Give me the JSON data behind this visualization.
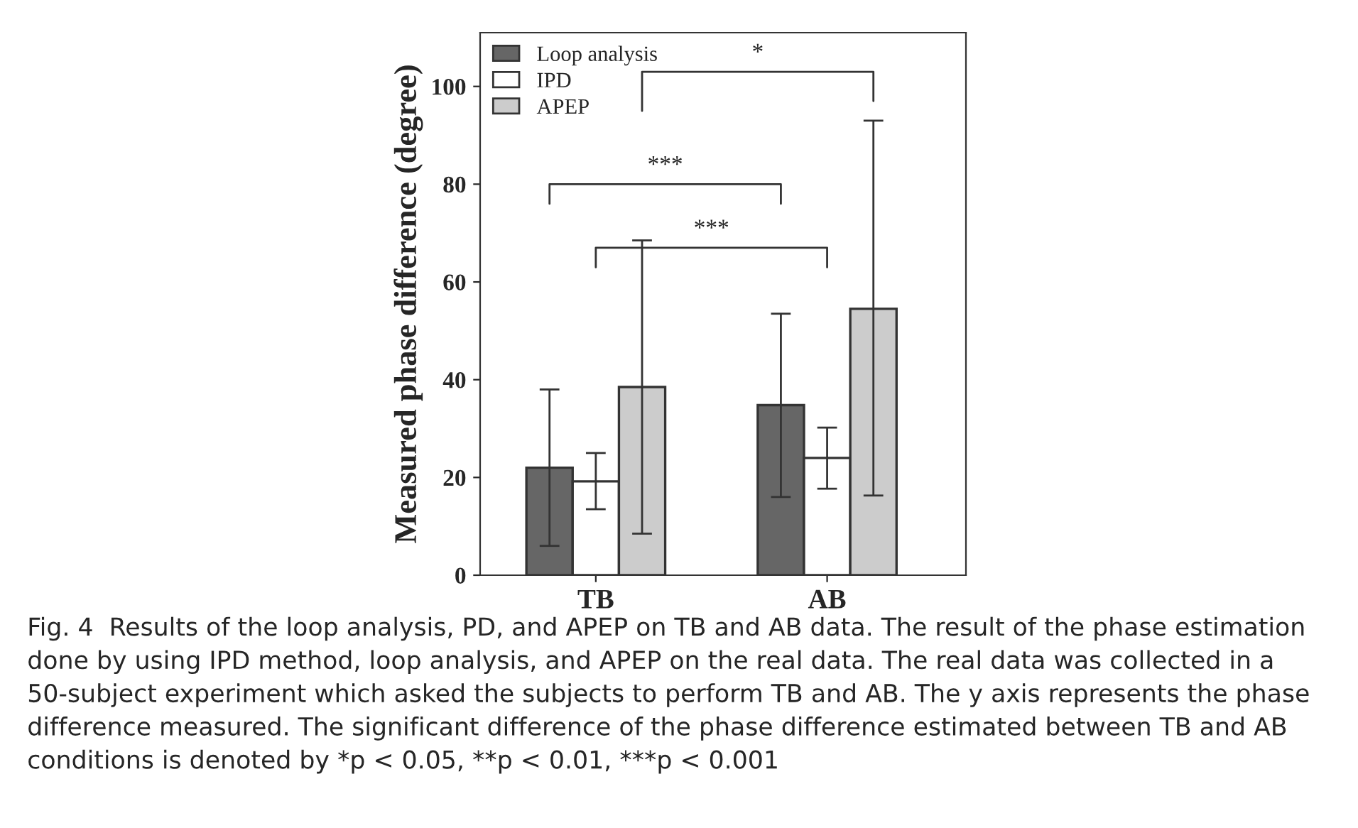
{
  "chart_data": {
    "type": "bar",
    "ylabel": "Measured phase difference (degree)",
    "categories": [
      "TB",
      "AB"
    ],
    "series": [
      {
        "name": "Loop analysis",
        "color": "#666666",
        "values": [
          22,
          34.8
        ],
        "errors": [
          [
            6,
            38
          ],
          [
            16,
            53.5
          ]
        ]
      },
      {
        "name": "IPD",
        "color": "#ffffff",
        "values": [
          19.2,
          24
        ],
        "errors": [
          [
            13.5,
            25
          ],
          [
            17.7,
            30.2
          ]
        ]
      },
      {
        "name": "APEP",
        "color": "#cccccc",
        "values": [
          38.5,
          54.5
        ],
        "errors": [
          [
            8.5,
            68.5
          ],
          [
            16.3,
            93
          ]
        ]
      }
    ],
    "ylim": [
      0,
      111
    ],
    "yticks": [
      0,
      20,
      40,
      60,
      80,
      100
    ],
    "legend": "top left",
    "grid": false,
    "annotations": [
      "***",
      "***",
      "*",
      "Fig. 4  Results of the loop analysis, PD, and APEP on TB and AB data. The result of the phase estimation done by using IPD method, loop analysis, and APEP on the real data. The real data was collected in a 50-subject experiment which asked the subjects to perform TB and AB. The y axis represents the phase difference measured. The significant difference of the phase difference estimated between TB and AB conditions is denoted by *p < 0.05, **p < 0.01, ***p < 0.001"
    ]
  }
}
